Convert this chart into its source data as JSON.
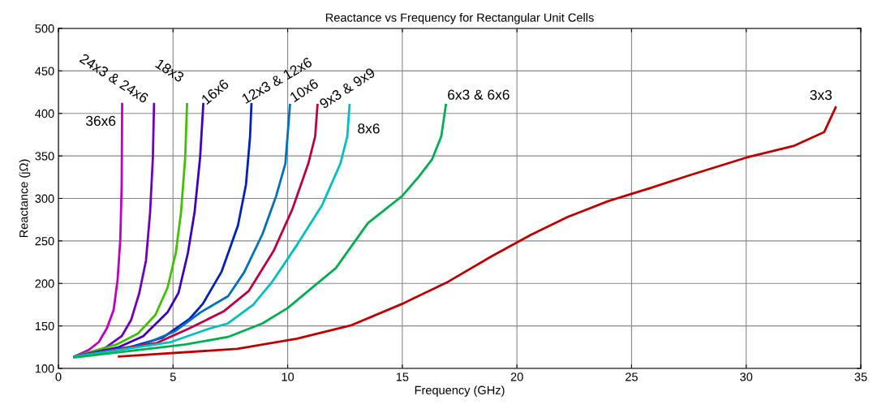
{
  "chart_data": {
    "type": "line",
    "title": "Reactance vs Frequency for Rectangular Unit Cells",
    "xlabel": "Frequency (GHz)",
    "ylabel": "Reactance (jΩ)",
    "xlim": [
      0,
      35
    ],
    "xticks": [
      0,
      5,
      10,
      15,
      20,
      25,
      30,
      35
    ],
    "ylim": [
      100,
      500
    ],
    "yticks": [
      100,
      150,
      200,
      250,
      300,
      350,
      400,
      450,
      500
    ],
    "grid": true,
    "line_style": "solid",
    "series": [
      {
        "color": "#c000c0",
        "x": [
          0.7,
          1.34,
          1.76,
          2.11,
          2.41,
          2.58,
          2.7,
          2.76,
          2.78
        ],
        "values": [
          114,
          122,
          131,
          147,
          169,
          204,
          252,
          316,
          411
        ]
      },
      {
        "color": "#7000c0",
        "x": [
          0.7,
          1.93,
          2.76,
          3.17,
          3.53,
          3.82,
          4.0,
          4.12,
          4.17
        ],
        "values": [
          114,
          122,
          138,
          157,
          189,
          227,
          284,
          348,
          411
        ]
      },
      {
        "color": "#40c000",
        "x": [
          0.7,
          2.52,
          3.47,
          4.23,
          4.76,
          5.12,
          5.35,
          5.53,
          5.61
        ],
        "values": [
          114,
          128,
          141,
          163,
          195,
          236,
          284,
          348,
          411
        ]
      },
      {
        "color": "#4000c0",
        "x": [
          0.7,
          2.64,
          3.7,
          4.76,
          5.24,
          5.65,
          5.94,
          6.18,
          6.32
        ],
        "values": [
          114,
          125,
          138,
          166,
          189,
          236,
          284,
          348,
          411
        ]
      },
      {
        "color": "#0020c0",
        "x": [
          0.7,
          3.11,
          4.53,
          5.71,
          6.3,
          7.12,
          7.83,
          8.18,
          8.36,
          8.42
        ],
        "values": [
          114,
          125,
          136,
          158,
          176,
          214,
          268,
          316,
          373,
          411
        ]
      },
      {
        "color": "#0070c0",
        "x": [
          0.7,
          3.7,
          5.1,
          6.2,
          7.4,
          8.1,
          8.9,
          9.5,
          9.9,
          10.1
        ],
        "values": [
          114,
          128,
          144,
          166,
          185,
          213,
          258,
          303,
          341,
          410
        ]
      },
      {
        "color": "#c00040",
        "x": [
          0.7,
          4.3,
          5.7,
          7.2,
          8.3,
          9.4,
          10.2,
          10.9,
          11.2,
          11.3
        ],
        "values": [
          114,
          130,
          147,
          167,
          191,
          239,
          287,
          341,
          373,
          410
        ]
      },
      {
        "color": "#00c0c0",
        "x": [
          0.7,
          4.9,
          6.6,
          7.4,
          8.5,
          9.3,
          10.4,
          11.5,
          12.3,
          12.6,
          12.7
        ],
        "values": [
          114,
          131,
          147,
          153,
          175,
          201,
          245,
          292,
          341,
          373,
          410
        ]
      },
      {
        "color": "#00b050",
        "x": [
          0.7,
          5.5,
          7.4,
          8.9,
          10,
          11.2,
          12.1,
          13.5,
          15,
          15.7,
          16.3,
          16.7,
          16.9
        ],
        "values": [
          113,
          128,
          137,
          153,
          171,
          198,
          218,
          271,
          303,
          325,
          346,
          373,
          410
        ]
      },
      {
        "color": "#c00000",
        "x": [
          2.64,
          7.8,
          10.4,
          12.8,
          15,
          17.0,
          18.9,
          20.6,
          22.2,
          24.0,
          25.8,
          27.5,
          30.0,
          32.1,
          33.4,
          33.9
        ],
        "values": [
          114,
          123,
          135,
          151,
          176,
          202,
          232,
          257,
          278,
          297,
          312,
          327,
          348,
          362,
          378,
          407
        ]
      }
    ],
    "annotations": [
      {
        "text": "24x3 & 24x6",
        "x": 4.17,
        "y": 411
      },
      {
        "text": "18x3",
        "x": 5.61,
        "y": 411
      },
      {
        "text": "16x6",
        "x": 6.32,
        "y": 411
      },
      {
        "text": "12x3 & 12x6",
        "x": 8.42,
        "y": 411
      },
      {
        "text": "10x6",
        "x": 10.1,
        "y": 410
      },
      {
        "text": "9x3 & 9x9",
        "x": 11.3,
        "y": 410
      },
      {
        "text": "36x6",
        "x": 2.78,
        "y": 411
      },
      {
        "text": "8x6",
        "x": 12.7,
        "y": 410
      },
      {
        "text": "6x3 & 6x6",
        "x": 16.9,
        "y": 410
      },
      {
        "text": "3x3",
        "x": 33.9,
        "y": 407
      }
    ]
  }
}
